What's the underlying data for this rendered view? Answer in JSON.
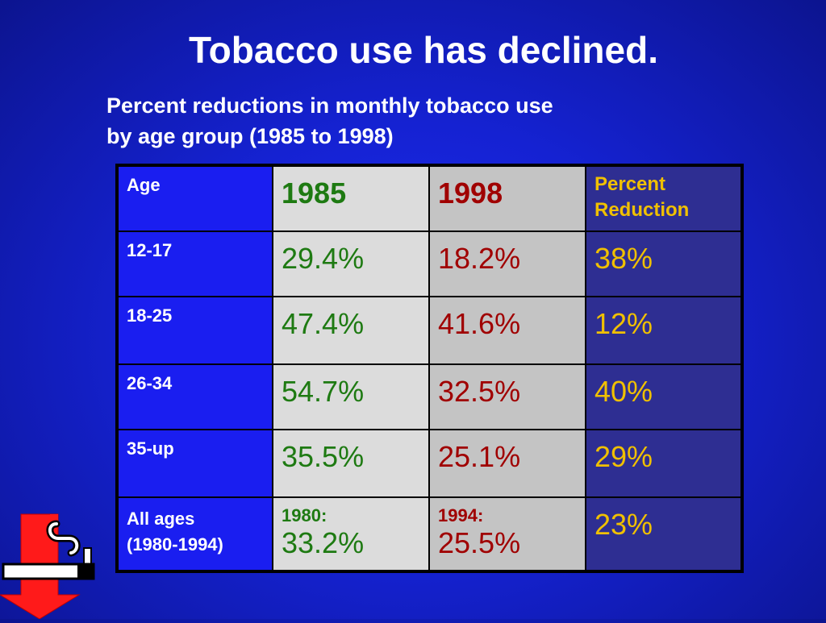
{
  "slide": {
    "title": "Tobacco use has declined.",
    "subtitle_line1": "Percent reductions in monthly tobacco use",
    "subtitle_line2": "by age group (1985 to 1998)"
  },
  "table": {
    "headers": {
      "age": "Age",
      "y1985": "1985",
      "y1998": "1998",
      "reduction_line1": "Percent",
      "reduction_line2": "Reduction"
    },
    "rows": [
      {
        "age": "12-17",
        "v1985": "29.4%",
        "v1998": "18.2%",
        "reduction": "38%"
      },
      {
        "age": "18-25",
        "v1985": "47.4%",
        "v1998": "41.6%",
        "reduction": "12%"
      },
      {
        "age": "26-34",
        "v1985": "54.7%",
        "v1998": "32.5%",
        "reduction": "40%"
      },
      {
        "age": "35-up",
        "v1985": "35.5%",
        "v1998": "25.1%",
        "reduction": "29%"
      }
    ],
    "all_ages": {
      "label_line1": "All ages",
      "label_line2": "(1980-1994)",
      "year_a": "1980:",
      "value_a": "33.2%",
      "year_b": "1994:",
      "value_b": "25.5%",
      "reduction": "23%"
    }
  },
  "icon": {
    "name": "no-smoking-decline-icon"
  },
  "colors": {
    "background": "#1522d2",
    "col_1985_text": "#1e7a12",
    "col_1998_text": "#a00000",
    "col_reduction_text": "#f0c000"
  }
}
